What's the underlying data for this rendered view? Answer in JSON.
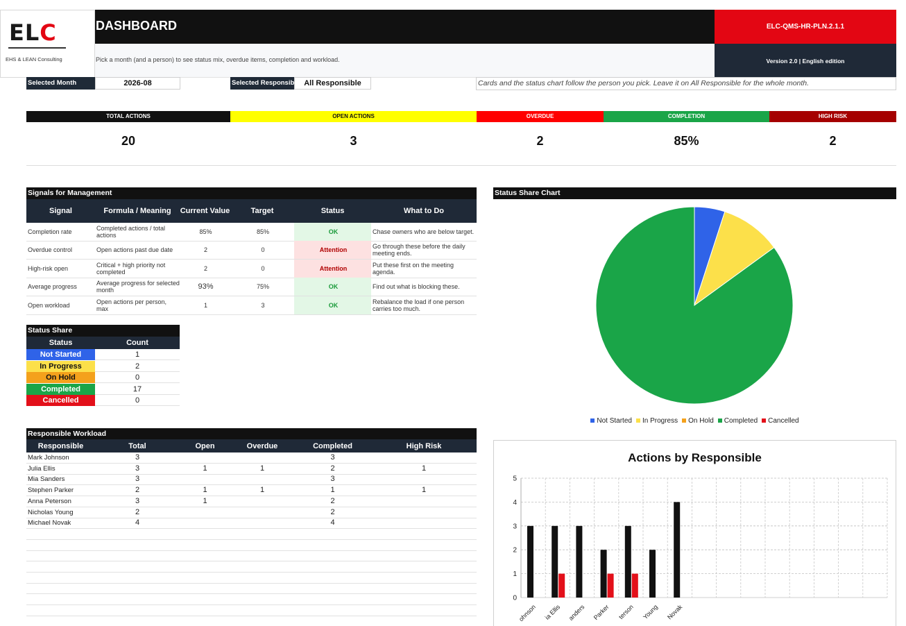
{
  "header": {
    "logo_text": "ELC",
    "logo_sub": "EHS & LEAN Consulting",
    "title": "DASHBOARD",
    "subtitle": "Pick a month (and a person) to see status mix, overdue items, completion and workload.",
    "doc_code": "ELC-QMS-HR-PLN.2.1.1",
    "version": "Version 2.0 | English edition"
  },
  "filters": {
    "month_label": "Selected Month",
    "month_value": "2026-08",
    "responsible_label": "Selected Responsible",
    "responsible_value": "All Responsible",
    "note": "Cards and the status chart follow the person you pick. Leave it on All Responsible for the whole month."
  },
  "kpis": [
    {
      "label": "TOTAL ACTIONS",
      "value": "20",
      "color": "#111111",
      "text_color": "#ffffff"
    },
    {
      "label": "OPEN ACTIONS",
      "value": "3",
      "color": "#ffff00",
      "text_color": "#111111"
    },
    {
      "label": "OVERDUE",
      "value": "2",
      "color": "#ff0000",
      "text_color": "#ffffff"
    },
    {
      "label": "COMPLETION",
      "value": "85%",
      "color": "#1aa548",
      "text_color": "#ffffff"
    },
    {
      "label": "HIGH RISK",
      "value": "2",
      "color": "#a50000",
      "text_color": "#ffffff"
    }
  ],
  "signals": {
    "title": "Signals for Management",
    "headers": [
      "Signal",
      "Formula / Meaning",
      "Current Value",
      "Target",
      "Status",
      "What to Do"
    ],
    "rows": [
      {
        "signal": "Completion rate",
        "formula": "Completed actions / total actions",
        "current": "85%",
        "target": "85%",
        "status": "OK",
        "todo": "Chase owners who are below target."
      },
      {
        "signal": "Overdue control",
        "formula": "Open actions past due date",
        "current": "2",
        "target": "0",
        "status": "Attention",
        "todo": "Go through these before the daily meeting ends."
      },
      {
        "signal": "High-risk open",
        "formula": "Critical + high priority not completed",
        "current": "2",
        "target": "0",
        "status": "Attention",
        "todo": "Put these first on the meeting agenda."
      },
      {
        "signal": "Average progress",
        "formula": "Average progress for selected month",
        "current": "93%",
        "target": "75%",
        "status": "OK",
        "todo": "Find out what is blocking these."
      },
      {
        "signal": "Open workload",
        "formula": "Open actions per person, max",
        "current": "1",
        "target": "3",
        "status": "OK",
        "todo": "Rebalance the load if one person carries too much."
      }
    ]
  },
  "status_share": {
    "title": "Status Share",
    "headers": [
      "Status",
      "Count"
    ],
    "rows": [
      {
        "status": "Not Started",
        "count": "1",
        "color": "#2f63e8",
        "text_color": "#ffffff"
      },
      {
        "status": "In Progress",
        "count": "2",
        "color": "#fce04a",
        "text_color": "#111111"
      },
      {
        "status": "On Hold",
        "count": "0",
        "color": "#f4a11c",
        "text_color": "#111111"
      },
      {
        "status": "Completed",
        "count": "17",
        "color": "#1aa548",
        "text_color": "#ffffff"
      },
      {
        "status": "Cancelled",
        "count": "0",
        "color": "#e3101a",
        "text_color": "#ffffff"
      }
    ]
  },
  "workload": {
    "title": "Responsible Workload",
    "headers": [
      "Responsible",
      "Total",
      "Open",
      "Overdue",
      "Completed",
      "High Risk"
    ],
    "rows": [
      [
        "Mark Johnson",
        "3",
        "",
        "",
        "3",
        ""
      ],
      [
        "Julia Ellis",
        "3",
        "1",
        "1",
        "2",
        "1"
      ],
      [
        "Mia Sanders",
        "3",
        "",
        "",
        "3",
        ""
      ],
      [
        "Stephen Parker",
        "2",
        "1",
        "1",
        "1",
        "1"
      ],
      [
        "Anna Peterson",
        "3",
        "1",
        "",
        "2",
        ""
      ],
      [
        "Nicholas Young",
        "2",
        "",
        "",
        "2",
        ""
      ],
      [
        "Michael Novak",
        "4",
        "",
        "",
        "4",
        ""
      ]
    ]
  },
  "pie_title": "Status Share Chart",
  "chart_data": [
    {
      "type": "pie",
      "title": "",
      "categories": [
        "Not Started",
        "In Progress",
        "On Hold",
        "Completed",
        "Cancelled"
      ],
      "values": [
        1,
        2,
        0,
        17,
        0
      ],
      "colors": [
        "#2f63e8",
        "#fce04a",
        "#f4a11c",
        "#1aa548",
        "#e3101a"
      ],
      "legend": "bottom"
    },
    {
      "type": "bar",
      "title": "Actions by Responsible",
      "categories": [
        "Mark Johnson",
        "Julia Ellis",
        "Mia Sanders",
        "Stephen Parker",
        "Anna Peterson",
        "Nicholas Young",
        "Michael Novak"
      ],
      "tick_labels": [
        "ohnson",
        "ia Ellis",
        "anders",
        "Parker",
        "terson",
        "Young",
        "Novak"
      ],
      "series": [
        {
          "values": [
            3,
            3,
            3,
            2,
            3,
            2,
            4
          ],
          "color": "#111111"
        },
        {
          "values": [
            0,
            1,
            0,
            1,
            1,
            0,
            0
          ],
          "color": "#e3101a"
        }
      ],
      "ylim": [
        0,
        5
      ],
      "yticks": [
        "0",
        "1",
        "2",
        "3",
        "4",
        "5"
      ],
      "grid": true
    }
  ]
}
